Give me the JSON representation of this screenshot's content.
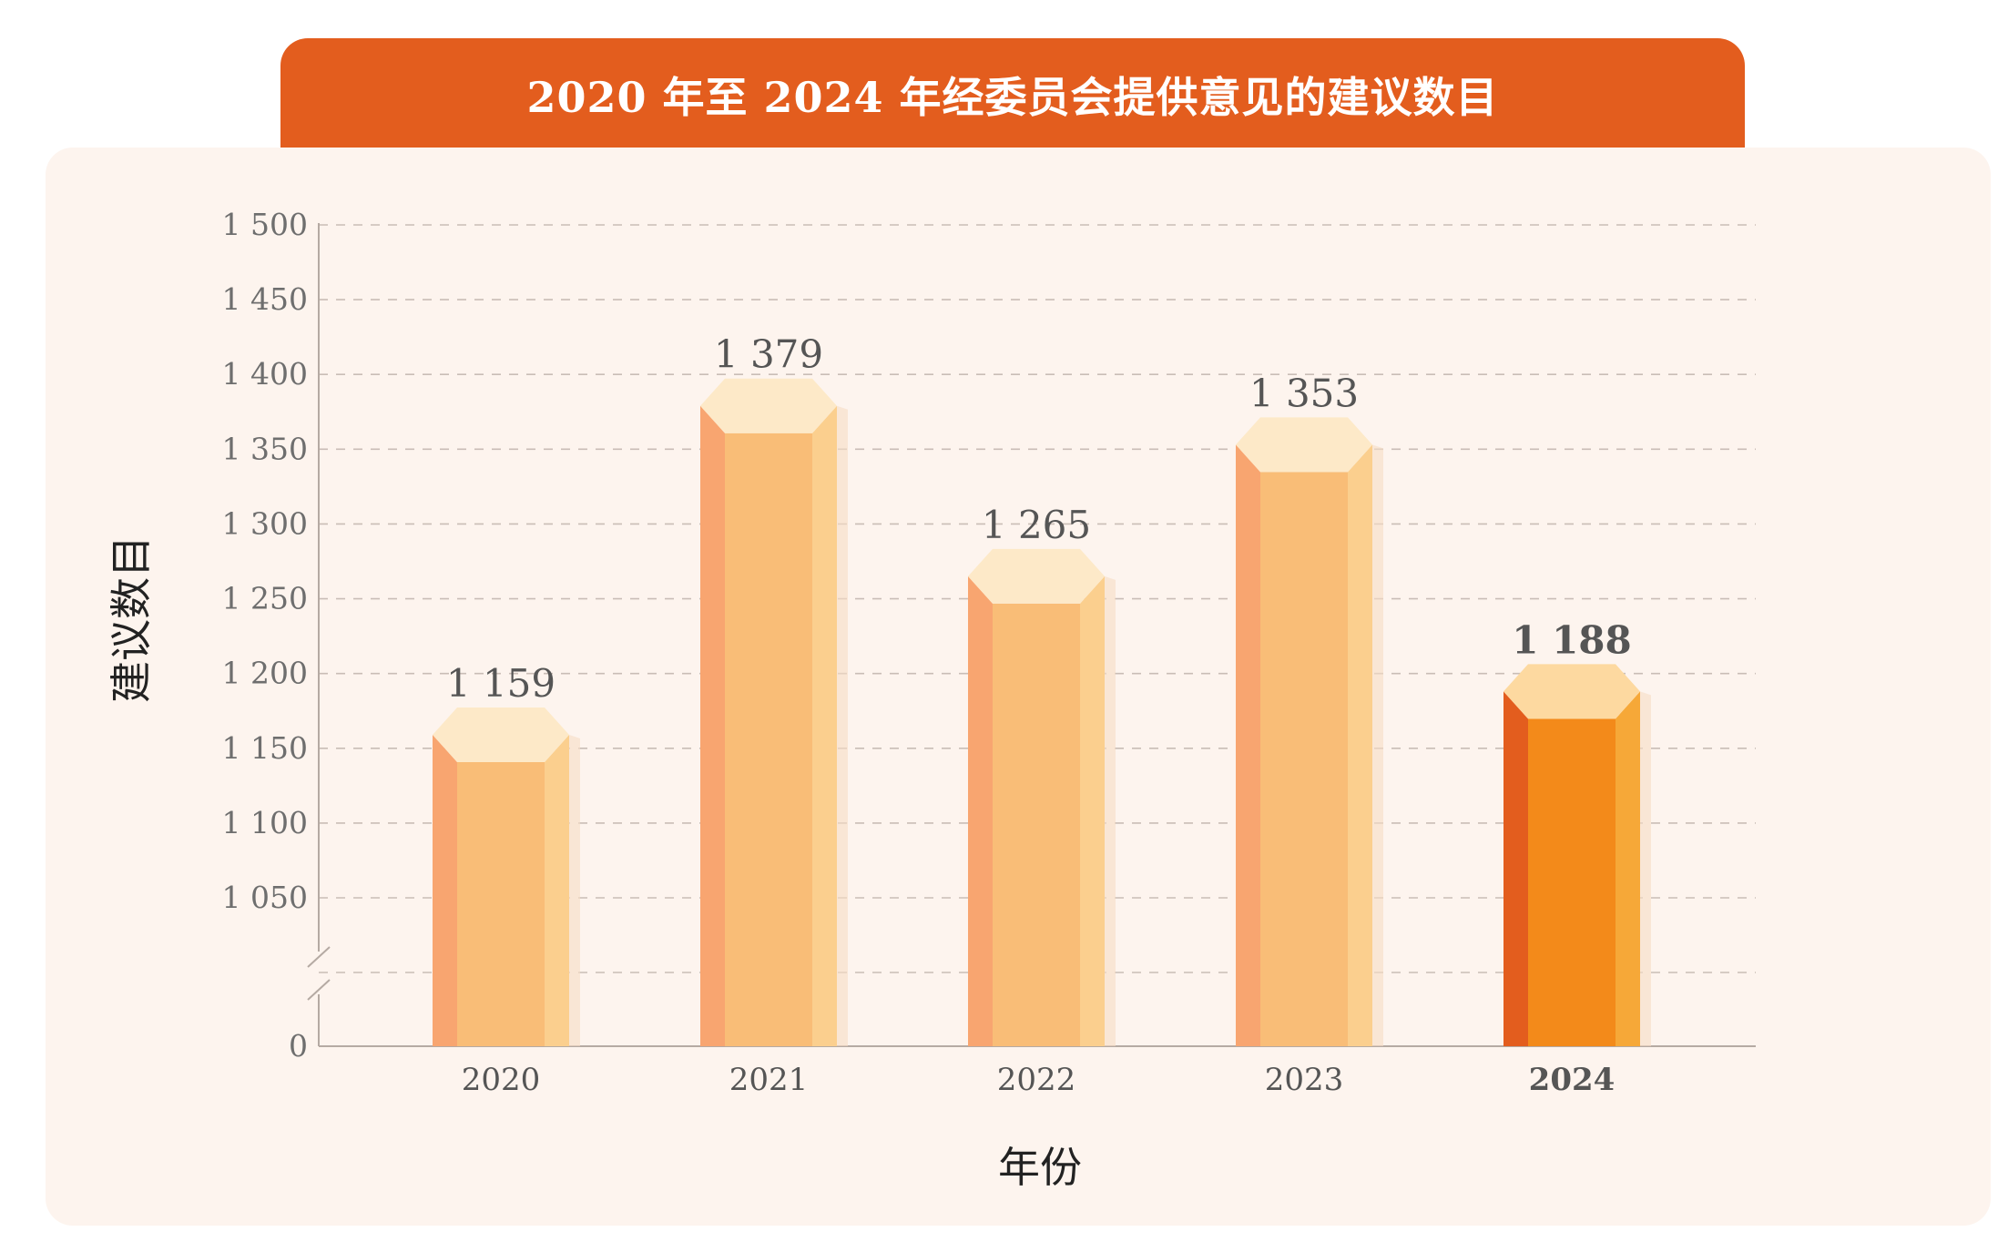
{
  "title": "2020 年至 2024 年经委员会提供意见的建议数目",
  "chart_data": {
    "type": "bar",
    "title": "2020 年至 2024 年经委员会提供意见的建议数目",
    "xlabel": "年份",
    "ylabel": "建议数目",
    "categories": [
      "2020",
      "2021",
      "2022",
      "2023",
      "2024"
    ],
    "values": [
      1159,
      1379,
      1265,
      1353,
      1188
    ],
    "value_labels": [
      "1 159",
      "1 379",
      "1 265",
      "1 353",
      "1 188"
    ],
    "y_ticks": [
      0,
      1050,
      1100,
      1150,
      1200,
      1250,
      1300,
      1350,
      1400,
      1450,
      1500
    ],
    "y_tick_labels": [
      "0",
      "1 050",
      "1 100",
      "1 150",
      "1 200",
      "1 250",
      "1 300",
      "1 350",
      "1 400",
      "1 450",
      "1 500"
    ],
    "ylim": [
      0,
      1500
    ],
    "axis_break": true,
    "grid": true,
    "highlight_category": "2024",
    "colors": {
      "bar_left": "#f8a570",
      "bar_front": "#f9bd77",
      "bar_right": "#fbcf8e",
      "bar_top": "#fde9c8",
      "highlight_left": "#e35d1e",
      "highlight_front": "#f38a1a",
      "highlight_right": "#f6a838",
      "highlight_top": "#fdd9a0",
      "highlight_text": "#e35d1e",
      "title_bg": "#e35d1e",
      "panel_bg": "#fdf4ee"
    }
  }
}
